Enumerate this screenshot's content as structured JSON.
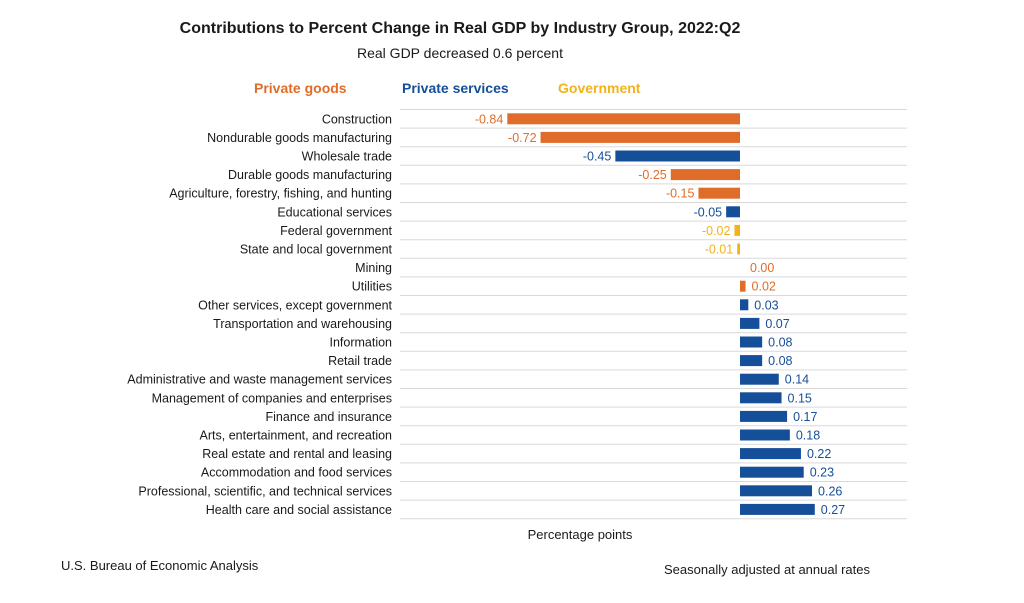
{
  "chart_data": {
    "type": "bar",
    "orientation": "horizontal",
    "title": "Contributions to Percent Change in Real GDP by Industry Group, 2022:Q2",
    "subtitle": "Real GDP decreased 0.6 percent",
    "xlabel": "Percentage points",
    "legend_placement": "top",
    "groups": [
      {
        "name": "Private goods",
        "color": "#e06c29"
      },
      {
        "name": "Private services",
        "color": "#154f99"
      },
      {
        "name": "Government",
        "color": "#f2b21c"
      }
    ],
    "categories": [
      "Construction",
      "Nondurable goods manufacturing",
      "Wholesale trade",
      "Durable goods manufacturing",
      "Agriculture, forestry, fishing, and hunting",
      "Educational services",
      "Federal government",
      "State and local government",
      "Mining",
      "Utilities",
      "Other services, except government",
      "Transportation and warehousing",
      "Information",
      "Retail trade",
      "Administrative and waste management services",
      "Management of companies and enterprises",
      "Finance and insurance",
      "Arts, entertainment, and recreation",
      "Real estate and rental and leasing",
      "Accommodation and food services",
      "Professional, scientific, and technical services",
      "Health care and social assistance"
    ],
    "values": [
      -0.84,
      -0.72,
      -0.45,
      -0.25,
      -0.15,
      -0.05,
      -0.02,
      -0.01,
      0.0,
      0.02,
      0.03,
      0.07,
      0.08,
      0.08,
      0.14,
      0.15,
      0.17,
      0.18,
      0.22,
      0.23,
      0.26,
      0.27
    ],
    "value_labels": [
      "-0.84",
      "-0.72",
      "-0.45",
      "-0.25",
      "-0.15",
      "-0.05",
      "-0.02",
      "-0.01",
      "0.00",
      "0.02",
      "0.03",
      "0.07",
      "0.08",
      "0.08",
      "0.14",
      "0.15",
      "0.17",
      "0.18",
      "0.22",
      "0.23",
      "0.26",
      "0.27"
    ],
    "group_of_category": [
      "Private goods",
      "Private goods",
      "Private services",
      "Private goods",
      "Private goods",
      "Private services",
      "Government",
      "Government",
      "Private goods",
      "Private goods",
      "Private services",
      "Private services",
      "Private services",
      "Private services",
      "Private services",
      "Private services",
      "Private services",
      "Private services",
      "Private services",
      "Private services",
      "Private services",
      "Private services"
    ],
    "xlim": [
      -0.84,
      0.6
    ],
    "grid": "horizontal"
  },
  "footer": {
    "source": "U.S. Bureau of Economic Analysis",
    "note": "Seasonally adjusted at annual rates"
  }
}
